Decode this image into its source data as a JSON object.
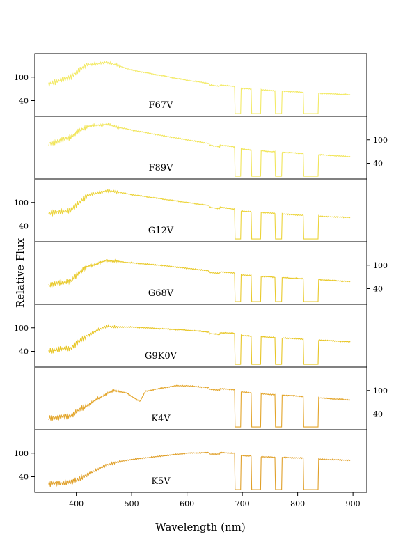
{
  "chart_data": {
    "type": "line",
    "xlabel": "Wavelength (nm)",
    "ylabel": "Relative Flux",
    "xlim": [
      325,
      925
    ],
    "ylim": [
      0,
      160
    ],
    "x_ticks": [
      400,
      500,
      600,
      700,
      800,
      900
    ],
    "y_ticks": [
      40,
      100
    ],
    "y_tick_labels": [
      "40",
      "100"
    ],
    "panels": [
      {
        "name": "F67V",
        "color": "#f3ea66",
        "yaxis": "left",
        "points": [
          [
            350,
            82
          ],
          [
            370,
            92
          ],
          [
            390,
            100
          ],
          [
            405,
            118
          ],
          [
            420,
            132
          ],
          [
            440,
            134
          ],
          [
            455,
            138
          ],
          [
            470,
            132
          ],
          [
            500,
            118
          ],
          [
            550,
            105
          ],
          [
            600,
            92
          ],
          [
            650,
            82
          ],
          [
            685,
            76
          ],
          [
            700,
            71
          ],
          [
            750,
            66
          ],
          [
            800,
            62
          ],
          [
            850,
            58
          ],
          [
            895,
            55
          ]
        ]
      },
      {
        "name": "F89V",
        "color": "#f1e55a",
        "yaxis": "right",
        "points": [
          [
            350,
            90
          ],
          [
            370,
            98
          ],
          [
            390,
            108
          ],
          [
            405,
            122
          ],
          [
            420,
            135
          ],
          [
            440,
            137
          ],
          [
            455,
            140
          ],
          [
            470,
            134
          ],
          [
            500,
            125
          ],
          [
            550,
            112
          ],
          [
            600,
            100
          ],
          [
            650,
            88
          ],
          [
            685,
            82
          ],
          [
            700,
            76
          ],
          [
            750,
            70
          ],
          [
            800,
            66
          ],
          [
            850,
            61
          ],
          [
            895,
            57
          ]
        ]
      },
      {
        "name": "G12V",
        "color": "#ecd43a",
        "yaxis": "left",
        "points": [
          [
            350,
            72
          ],
          [
            370,
            76
          ],
          [
            390,
            80
          ],
          [
            405,
            100
          ],
          [
            420,
            118
          ],
          [
            440,
            125
          ],
          [
            455,
            130
          ],
          [
            470,
            128
          ],
          [
            500,
            120
          ],
          [
            550,
            110
          ],
          [
            600,
            100
          ],
          [
            650,
            90
          ],
          [
            685,
            83
          ],
          [
            700,
            78
          ],
          [
            750,
            73
          ],
          [
            800,
            68
          ],
          [
            850,
            64
          ],
          [
            895,
            62
          ]
        ]
      },
      {
        "name": "G68V",
        "color": "#e9ca2c",
        "yaxis": "right",
        "points": [
          [
            350,
            48
          ],
          [
            370,
            55
          ],
          [
            390,
            58
          ],
          [
            405,
            82
          ],
          [
            420,
            96
          ],
          [
            440,
            105
          ],
          [
            455,
            112
          ],
          [
            470,
            110
          ],
          [
            500,
            106
          ],
          [
            550,
            100
          ],
          [
            600,
            92
          ],
          [
            650,
            84
          ],
          [
            685,
            80
          ],
          [
            700,
            75
          ],
          [
            750,
            70
          ],
          [
            800,
            66
          ],
          [
            850,
            62
          ],
          [
            895,
            58
          ]
        ]
      },
      {
        "name": "G9K0V",
        "color": "#e8c626",
        "yaxis": "left",
        "points": [
          [
            350,
            40
          ],
          [
            370,
            46
          ],
          [
            390,
            48
          ],
          [
            405,
            66
          ],
          [
            420,
            80
          ],
          [
            440,
            95
          ],
          [
            455,
            104
          ],
          [
            470,
            102
          ],
          [
            500,
            102
          ],
          [
            550,
            98
          ],
          [
            600,
            94
          ],
          [
            650,
            88
          ],
          [
            685,
            86
          ],
          [
            700,
            80
          ],
          [
            750,
            76
          ],
          [
            800,
            72
          ],
          [
            850,
            68
          ],
          [
            895,
            64
          ]
        ]
      },
      {
        "name": "K4V",
        "color": "#e3a52a",
        "yaxis": "right",
        "points": [
          [
            350,
            30
          ],
          [
            370,
            32
          ],
          [
            390,
            36
          ],
          [
            405,
            50
          ],
          [
            420,
            62
          ],
          [
            440,
            80
          ],
          [
            455,
            92
          ],
          [
            470,
            100
          ],
          [
            490,
            94
          ],
          [
            515,
            72
          ],
          [
            525,
            98
          ],
          [
            550,
            105
          ],
          [
            580,
            112
          ],
          [
            600,
            112
          ],
          [
            650,
            106
          ],
          [
            685,
            102
          ],
          [
            700,
            96
          ],
          [
            750,
            90
          ],
          [
            800,
            86
          ],
          [
            850,
            80
          ],
          [
            895,
            76
          ]
        ]
      },
      {
        "name": "K5V",
        "color": "#e0a02a",
        "yaxis": "left",
        "points": [
          [
            350,
            22
          ],
          [
            370,
            23
          ],
          [
            390,
            26
          ],
          [
            405,
            34
          ],
          [
            420,
            45
          ],
          [
            440,
            60
          ],
          [
            455,
            70
          ],
          [
            470,
            76
          ],
          [
            500,
            84
          ],
          [
            550,
            92
          ],
          [
            600,
            100
          ],
          [
            650,
            102
          ],
          [
            685,
            100
          ],
          [
            700,
            94
          ],
          [
            750,
            90
          ],
          [
            800,
            88
          ],
          [
            850,
            84
          ],
          [
            895,
            82
          ]
        ]
      }
    ],
    "absorption_bands_nm": [
      [
        687,
        697
      ],
      [
        717,
        733
      ],
      [
        760,
        771
      ],
      [
        811,
        837
      ]
    ]
  }
}
